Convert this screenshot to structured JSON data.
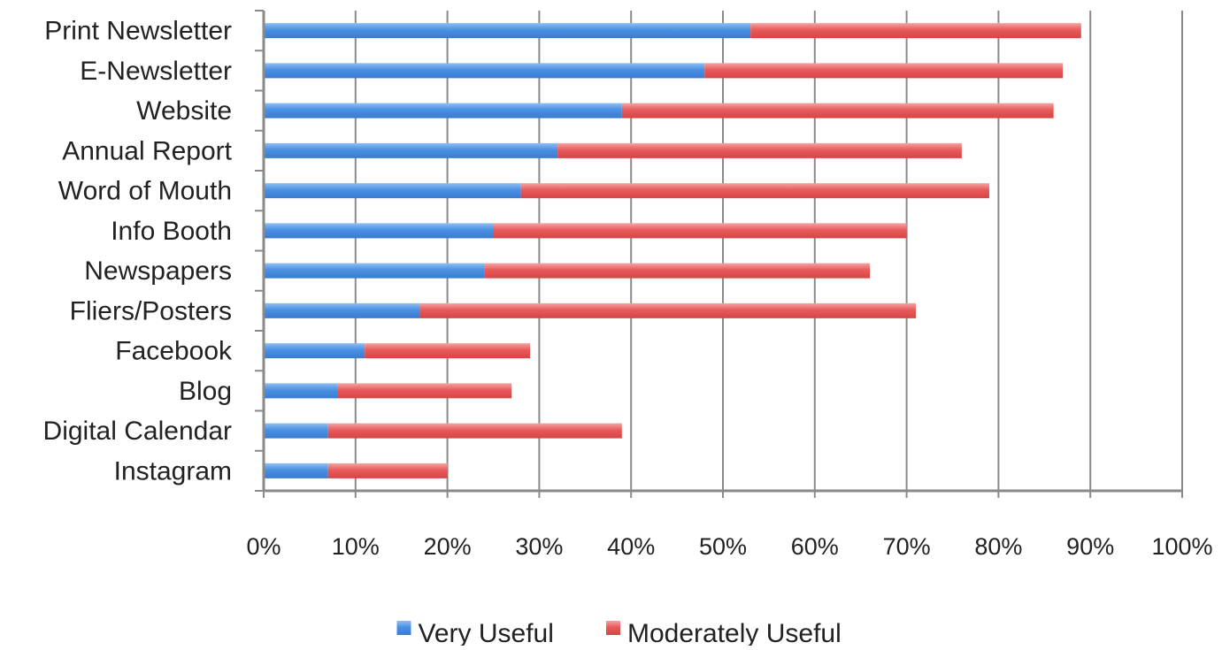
{
  "chart_data": {
    "type": "bar",
    "orientation": "horizontal",
    "stacked": true,
    "categories": [
      "Print Newsletter",
      "E-Newsletter",
      "Website",
      "Annual Report",
      "Word of Mouth",
      "Info Booth",
      "Newspapers",
      "Fliers/Posters",
      "Facebook",
      "Blog",
      "Digital Calendar",
      "Instagram"
    ],
    "series": [
      {
        "name": "Very Useful",
        "color": "#4a90e2",
        "values": [
          53,
          48,
          39,
          32,
          28,
          25,
          24,
          17,
          11,
          8,
          7,
          7
        ]
      },
      {
        "name": "Moderately Useful",
        "color": "#e85a5a",
        "values": [
          36,
          39,
          47,
          44,
          51,
          45,
          42,
          54,
          18,
          19,
          32,
          13
        ]
      }
    ],
    "xlim": [
      0,
      100
    ],
    "x_ticks": [
      "0%",
      "10%",
      "20%",
      "30%",
      "40%",
      "50%",
      "60%",
      "70%",
      "80%",
      "90%",
      "100%"
    ],
    "grid": true,
    "legend": "bottom",
    "title": "",
    "xlabel": "",
    "ylabel": ""
  }
}
